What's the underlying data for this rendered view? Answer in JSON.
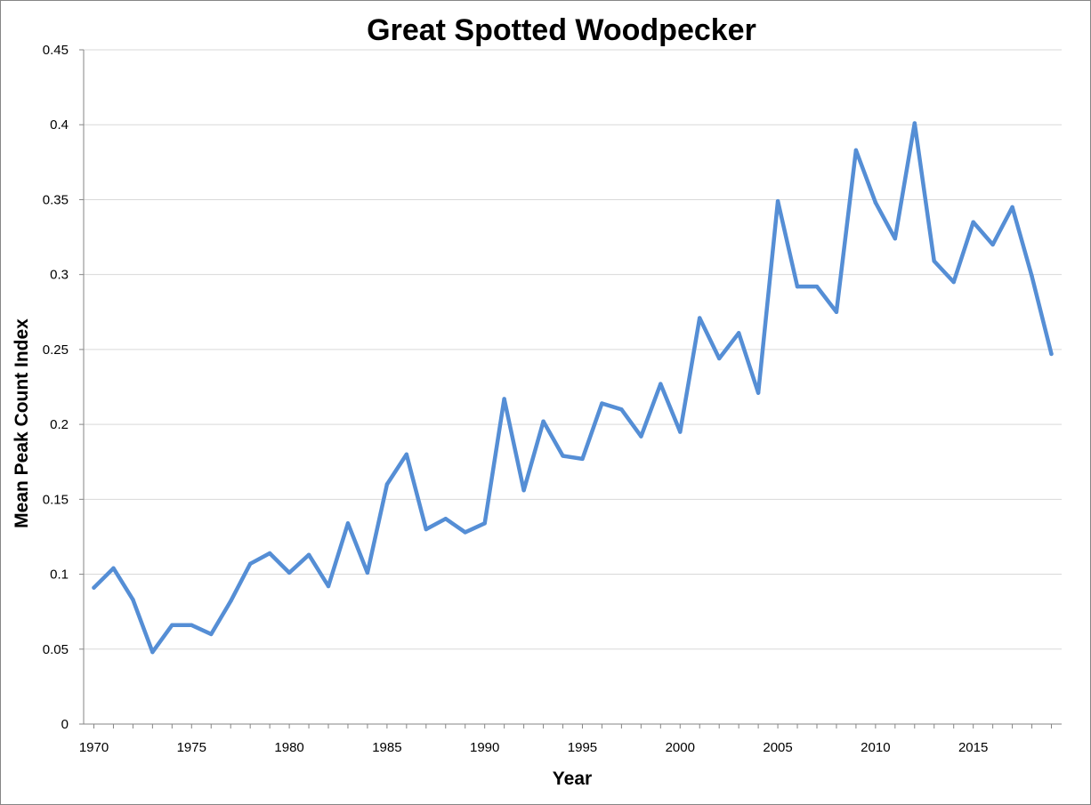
{
  "chart_data": {
    "type": "line",
    "title": "Great Spotted Woodpecker",
    "xlabel": "Year",
    "ylabel": "Mean Peak Count Index",
    "xlim": [
      1970,
      2019
    ],
    "ylim": [
      0,
      0.45
    ],
    "x_ticks": [
      1970,
      1975,
      1980,
      1985,
      1990,
      1995,
      2000,
      2005,
      2010,
      2015
    ],
    "y_ticks": [
      "0",
      "0.05",
      "0.1",
      "0.15",
      "0.2",
      "0.25",
      "0.3",
      "0.35",
      "0.4",
      "0.45"
    ],
    "grid": true,
    "legend": "none",
    "series": [
      {
        "color": "#558ed5",
        "x": [
          1970,
          1971,
          1972,
          1973,
          1974,
          1975,
          1976,
          1977,
          1978,
          1979,
          1980,
          1981,
          1982,
          1983,
          1984,
          1985,
          1986,
          1987,
          1988,
          1989,
          1990,
          1991,
          1992,
          1993,
          1994,
          1995,
          1996,
          1997,
          1998,
          1999,
          2000,
          2001,
          2002,
          2003,
          2004,
          2005,
          2006,
          2007,
          2008,
          2009,
          2010,
          2011,
          2012,
          2013,
          2014,
          2015,
          2016,
          2017,
          2018,
          2019
        ],
        "values": [
          0.091,
          0.104,
          0.083,
          0.048,
          0.066,
          0.066,
          0.06,
          0.082,
          0.107,
          0.114,
          0.101,
          0.113,
          0.092,
          0.134,
          0.101,
          0.16,
          0.18,
          0.13,
          0.137,
          0.128,
          0.134,
          0.217,
          0.156,
          0.202,
          0.179,
          0.177,
          0.214,
          0.21,
          0.192,
          0.227,
          0.195,
          0.271,
          0.244,
          0.261,
          0.221,
          0.349,
          0.292,
          0.292,
          0.275,
          0.383,
          0.348,
          0.324,
          0.401,
          0.309,
          0.295,
          0.335,
          0.32,
          0.345,
          0.299,
          0.247
        ]
      }
    ]
  }
}
